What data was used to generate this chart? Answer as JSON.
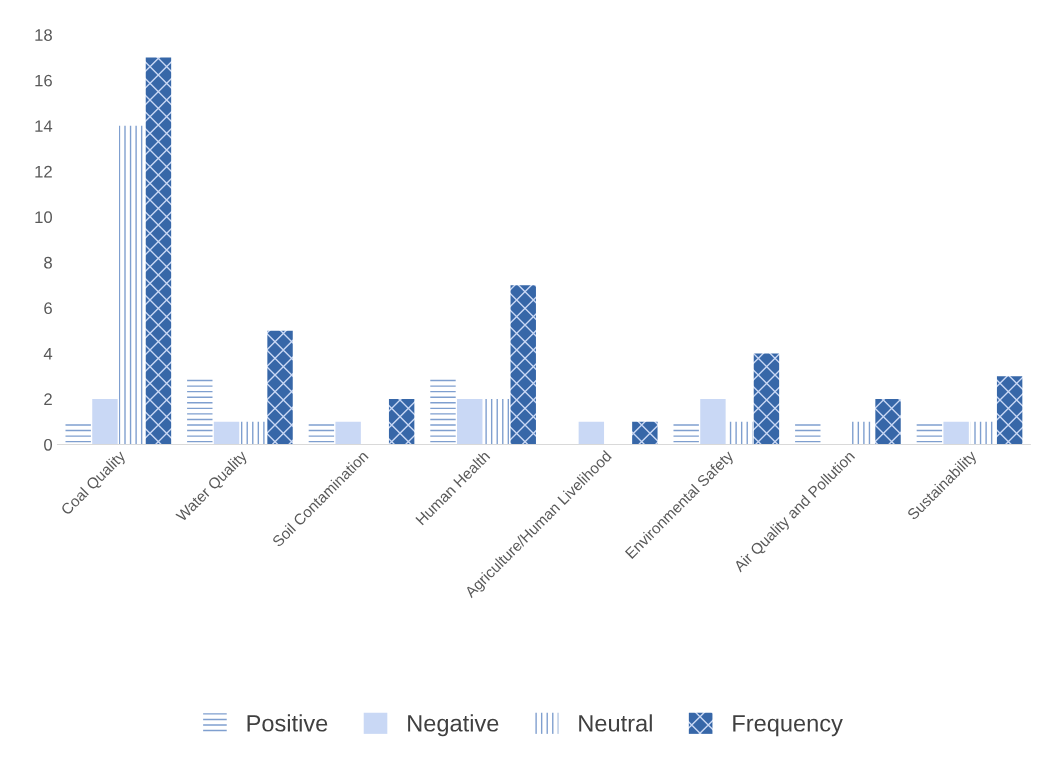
{
  "chart_data": {
    "type": "bar",
    "categories": [
      "Coal Quality",
      "Water Quality",
      "Soil Contamination",
      "Human Health",
      "Agriculture/Human Livelihood",
      "Environmental Safety",
      "Air Quality and Pollution",
      "Sustainability"
    ],
    "series": [
      {
        "name": "Positive",
        "color": "#7f9fcf",
        "values": [
          1,
          3,
          1,
          3,
          0,
          1,
          1,
          1
        ]
      },
      {
        "name": "Negative",
        "color": "#c9d8f5",
        "values": [
          2,
          1,
          1,
          2,
          1,
          2,
          0,
          1
        ]
      },
      {
        "name": "Neutral",
        "color": "#7f9fcf",
        "values": [
          14,
          1,
          0,
          2,
          0,
          1,
          1,
          1
        ]
      },
      {
        "name": "Frequency",
        "color": "#3767a8",
        "values": [
          17,
          5,
          2,
          7,
          1,
          4,
          2,
          3
        ]
      }
    ],
    "ylim": [
      0,
      18
    ],
    "yticks": [
      0,
      2,
      4,
      6,
      8,
      10,
      12,
      14,
      16,
      18
    ],
    "grid": false,
    "legend": "bottom"
  }
}
